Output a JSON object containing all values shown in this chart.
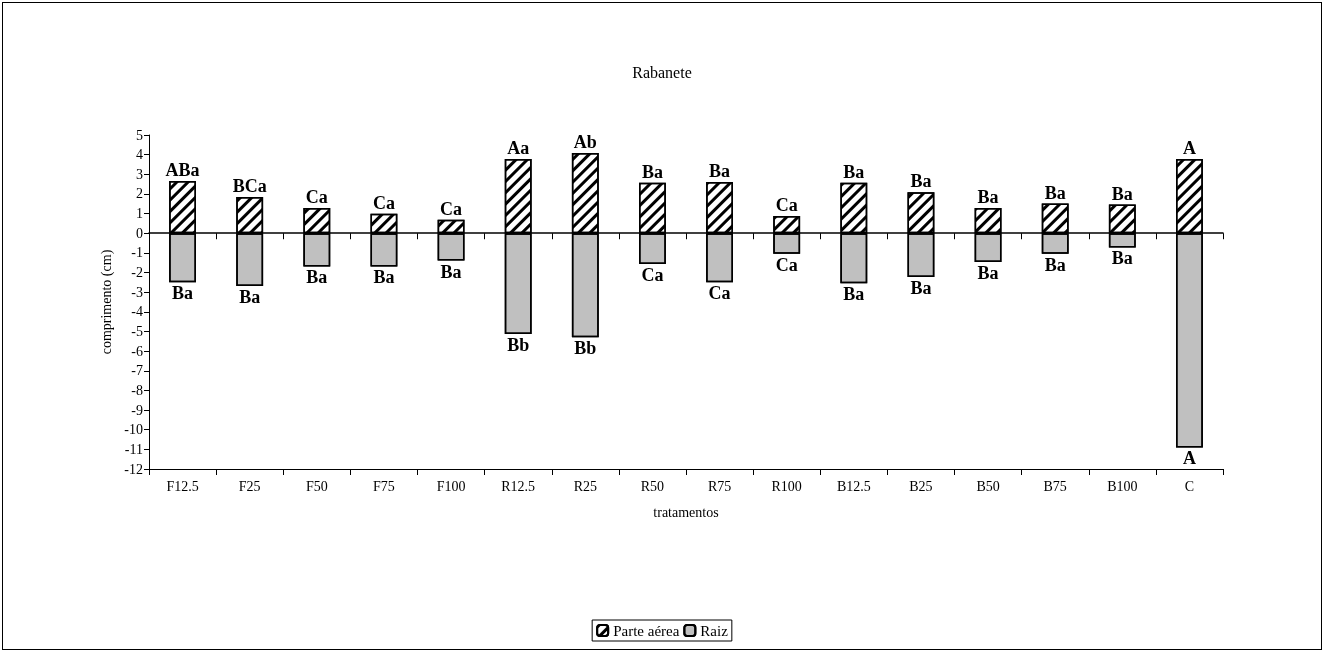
{
  "chart_data": {
    "type": "bar",
    "title": "Rabanete",
    "xlabel": "tratamentos",
    "ylabel": "comprimento (cm)",
    "categories": [
      "F12.5",
      "F25",
      "F50",
      "F75",
      "F100",
      "R12.5",
      "R25",
      "R50",
      "R75",
      "R100",
      "B12.5",
      "B25",
      "B50",
      "B75",
      "B100",
      "C"
    ],
    "series": [
      {
        "name": "Parte aérea",
        "color": "#ffffff",
        "values": [
          2.66,
          1.85,
          1.28,
          0.99,
          0.69,
          3.78,
          4.08,
          2.57,
          2.61,
          0.88,
          2.57,
          2.09,
          1.28,
          1.51,
          1.46,
          3.78
        ],
        "value_labels": [
          "ABa",
          "BCa",
          "Ca",
          "Ca",
          "Ca",
          "Aa",
          "Ab",
          "Ba",
          "Ba",
          "Ca",
          "Ba",
          "Ba",
          "Ba",
          "Ba",
          "Ba",
          "A"
        ]
      },
      {
        "name": "Raiz",
        "color": "#c0c0c0",
        "values": [
          -2.5,
          -2.69,
          -1.69,
          -1.69,
          -1.39,
          -5.13,
          -5.29,
          -1.57,
          -2.5,
          -1.04,
          -2.54,
          -2.23,
          -1.46,
          -1.05,
          -0.72,
          -10.9
        ],
        "value_labels": [
          "Ba",
          "Ba",
          "Ba",
          "Ba",
          "Ba",
          "Bb",
          "Bb",
          "Ca",
          "Ca",
          "Ca",
          "Ba",
          "Ba",
          "Ba",
          "Ba",
          "Ba",
          "A"
        ]
      }
    ],
    "stacked": true,
    "ylim": [
      -12,
      5
    ],
    "yticks": [
      -12,
      -11,
      -10,
      -9,
      -8,
      -7,
      -6,
      -5,
      -4,
      -3,
      -2,
      -1,
      0,
      1,
      2,
      3,
      4,
      5
    ],
    "legend": "bottom"
  }
}
